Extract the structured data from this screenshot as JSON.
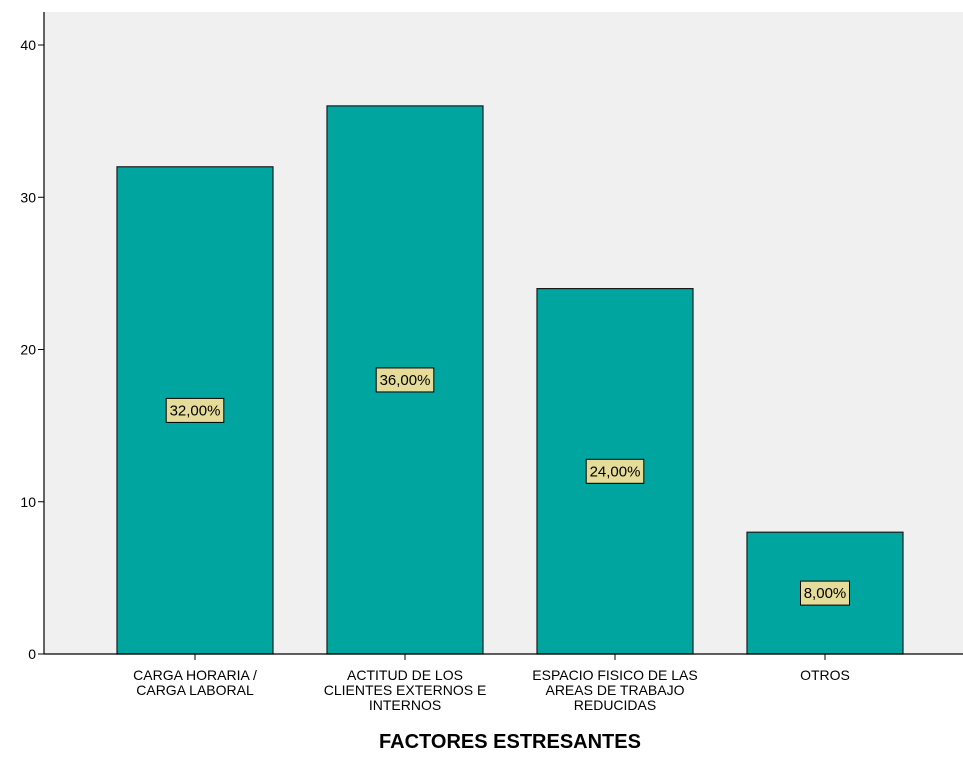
{
  "chart_data": {
    "type": "bar",
    "categories": [
      "CARGA HORARIA / CARGA LABORAL",
      "ACTITUD DE LOS CLIENTES EXTERNOS E INTERNOS",
      "ESPACIO FISICO DE LAS AREAS DE TRABAJO REDUCIDAS",
      "OTROS"
    ],
    "category_label_lines": [
      [
        "CARGA HORARIA /",
        "CARGA LABORAL"
      ],
      [
        "ACTITUD DE LOS",
        "CLIENTES EXTERNOS E",
        "INTERNOS"
      ],
      [
        "ESPACIO FISICO DE LAS",
        "AREAS DE TRABAJO",
        "REDUCIDAS"
      ],
      [
        "OTROS"
      ]
    ],
    "values": [
      32,
      36,
      24,
      8
    ],
    "data_labels": [
      "32,00%",
      "36,00%",
      "24,00%",
      "8,00%"
    ],
    "title": "",
    "xlabel": "FACTORES ESTRESANTES",
    "ylabel": "",
    "ylim": [
      0,
      40
    ],
    "yticks": [
      0,
      10,
      20,
      30,
      40
    ],
    "grid": false,
    "legend": "none",
    "colors": {
      "bar": "#00A59F",
      "bar_stroke": "#1a1a1a",
      "plot_background": "#F0F0F0",
      "data_label_fill": "#E6DC9A",
      "data_label_stroke": "#000000",
      "axis": "#000000"
    }
  }
}
